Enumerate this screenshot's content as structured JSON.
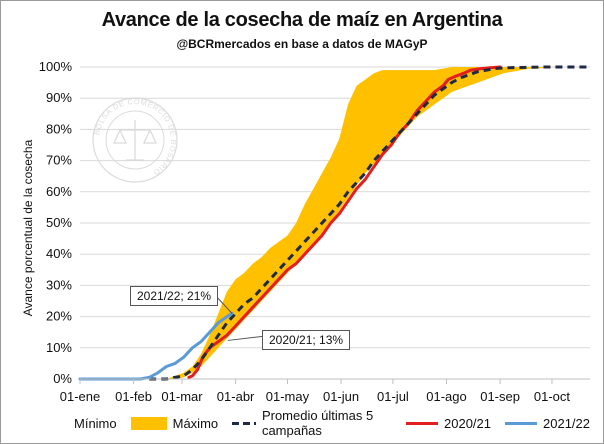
{
  "chart_data": {
    "type": "area",
    "title": "Avance de la cosecha de maíz en Argentina",
    "subtitle": "@BCRmercados en base a datos de MAGyP",
    "ylabel": "Avance porcentual de la cosecha",
    "xlabel": "",
    "watermark": "BOLSA DE COMERCIO DE ROSARIO",
    "ylim": [
      0,
      100
    ],
    "xlim": [
      0,
      295
    ],
    "y_ticks": [
      {
        "value": 0,
        "label": "0%"
      },
      {
        "value": 10,
        "label": "10%"
      },
      {
        "value": 20,
        "label": "20%"
      },
      {
        "value": 30,
        "label": "30%"
      },
      {
        "value": 40,
        "label": "40%"
      },
      {
        "value": 50,
        "label": "50%"
      },
      {
        "value": 60,
        "label": "60%"
      },
      {
        "value": 70,
        "label": "70%"
      },
      {
        "value": 80,
        "label": "80%"
      },
      {
        "value": 90,
        "label": "90%"
      },
      {
        "value": 100,
        "label": "100%"
      }
    ],
    "x_ticks": [
      {
        "day": 0,
        "label": "01-ene"
      },
      {
        "day": 31,
        "label": "01-feb"
      },
      {
        "day": 59,
        "label": "01-mar"
      },
      {
        "day": 90,
        "label": "01-abr"
      },
      {
        "day": 120,
        "label": "01-may"
      },
      {
        "day": 151,
        "label": "01-jun"
      },
      {
        "day": 181,
        "label": "01-jul"
      },
      {
        "day": 212,
        "label": "01-ago"
      },
      {
        "day": 243,
        "label": "01-sep"
      },
      {
        "day": 273,
        "label": "01-oct"
      }
    ],
    "legend": {
      "min": "Mínimo",
      "max": "Máximo",
      "avg": "Promedio últimas 5 campañas",
      "s2021": "2020/21",
      "s2122": "2021/22"
    },
    "band": {
      "x": [
        50,
        55,
        60,
        65,
        70,
        75,
        80,
        85,
        90,
        95,
        100,
        105,
        110,
        115,
        120,
        125,
        130,
        135,
        140,
        145,
        150,
        155,
        160,
        165,
        170,
        175,
        180,
        185,
        190,
        195,
        200,
        205,
        210,
        215,
        220,
        225,
        230,
        235,
        240,
        245,
        250,
        255,
        260,
        265,
        270,
        275,
        280,
        285,
        290,
        295
      ],
      "min": [
        0,
        0,
        0.5,
        2,
        4,
        7,
        10,
        13,
        16,
        19,
        22,
        25,
        28,
        31,
        34,
        37,
        40,
        43,
        46,
        50,
        54,
        58,
        62,
        66,
        69,
        72,
        75,
        78,
        81,
        84,
        86,
        88,
        90,
        92,
        93,
        94,
        95,
        96,
        97,
        98,
        98.5,
        99,
        99.5,
        99.5,
        99.8,
        100,
        100,
        100,
        100,
        100
      ],
      "max": [
        0,
        1,
        2,
        4,
        8,
        14,
        21,
        28,
        32,
        34,
        37,
        39,
        42,
        44,
        46,
        50,
        56,
        61,
        66,
        71,
        77,
        88,
        94,
        96,
        98,
        99,
        99,
        99,
        99,
        99,
        99,
        99,
        99.5,
        100,
        100,
        100,
        100,
        100,
        100,
        100,
        100,
        100,
        100,
        100,
        100,
        100,
        100,
        100,
        100,
        100
      ]
    },
    "series": [
      {
        "name": "Promedio últimas 5 campañas",
        "style": "dashed",
        "color": "#1f2a44",
        "x": [
          40,
          50,
          55,
          60,
          65,
          70,
          75,
          80,
          85,
          90,
          95,
          100,
          105,
          110,
          115,
          120,
          125,
          130,
          135,
          140,
          145,
          150,
          155,
          160,
          165,
          170,
          175,
          180,
          185,
          190,
          195,
          200,
          205,
          210,
          215,
          220,
          225,
          230,
          235,
          240,
          245,
          250,
          260,
          270,
          280,
          295
        ],
        "y": [
          0,
          0,
          0.5,
          1,
          3,
          6,
          10,
          14,
          18,
          21,
          24,
          26,
          29,
          32,
          35,
          38,
          41,
          44,
          47,
          50,
          53,
          56,
          60,
          63,
          66,
          70,
          73,
          76,
          79,
          82,
          85,
          88,
          91,
          93,
          95,
          96.5,
          97.5,
          98.5,
          99,
          99.5,
          99.7,
          99.8,
          99.9,
          100,
          100,
          100
        ]
      },
      {
        "name": "2020/21",
        "style": "solid",
        "color": "#e41e1e",
        "x": [
          63,
          65,
          68,
          71,
          75,
          80,
          85,
          90,
          95,
          100,
          105,
          110,
          115,
          120,
          125,
          130,
          135,
          140,
          145,
          150,
          155,
          160,
          165,
          170,
          175,
          180,
          185,
          190,
          195,
          200,
          205,
          210,
          213,
          217,
          222,
          226,
          232,
          238,
          243
        ],
        "y": [
          0.5,
          1,
          3,
          7,
          10,
          12,
          14,
          17,
          20,
          23,
          26,
          29,
          32,
          35,
          37,
          40,
          43,
          46,
          50,
          53,
          57,
          61,
          64,
          68,
          72,
          75,
          79,
          82,
          86,
          89,
          92,
          94,
          96,
          97,
          98,
          99,
          99.5,
          99.8,
          100
        ]
      },
      {
        "name": "2021/22",
        "style": "solid",
        "color": "#5b9bd5",
        "x": [
          0,
          10,
          20,
          30,
          35,
          40,
          45,
          50,
          55,
          60,
          65,
          70,
          75,
          80,
          85,
          88
        ],
        "y": [
          0,
          0,
          0,
          0,
          0,
          0.5,
          2,
          4,
          5,
          7,
          10,
          12,
          15,
          18,
          20,
          21
        ]
      }
    ],
    "annotations": [
      {
        "text": "2021/22; 21%",
        "day": 88,
        "value": 21
      },
      {
        "text": "2020/21; 13%",
        "day": 82,
        "value": 13
      }
    ]
  }
}
